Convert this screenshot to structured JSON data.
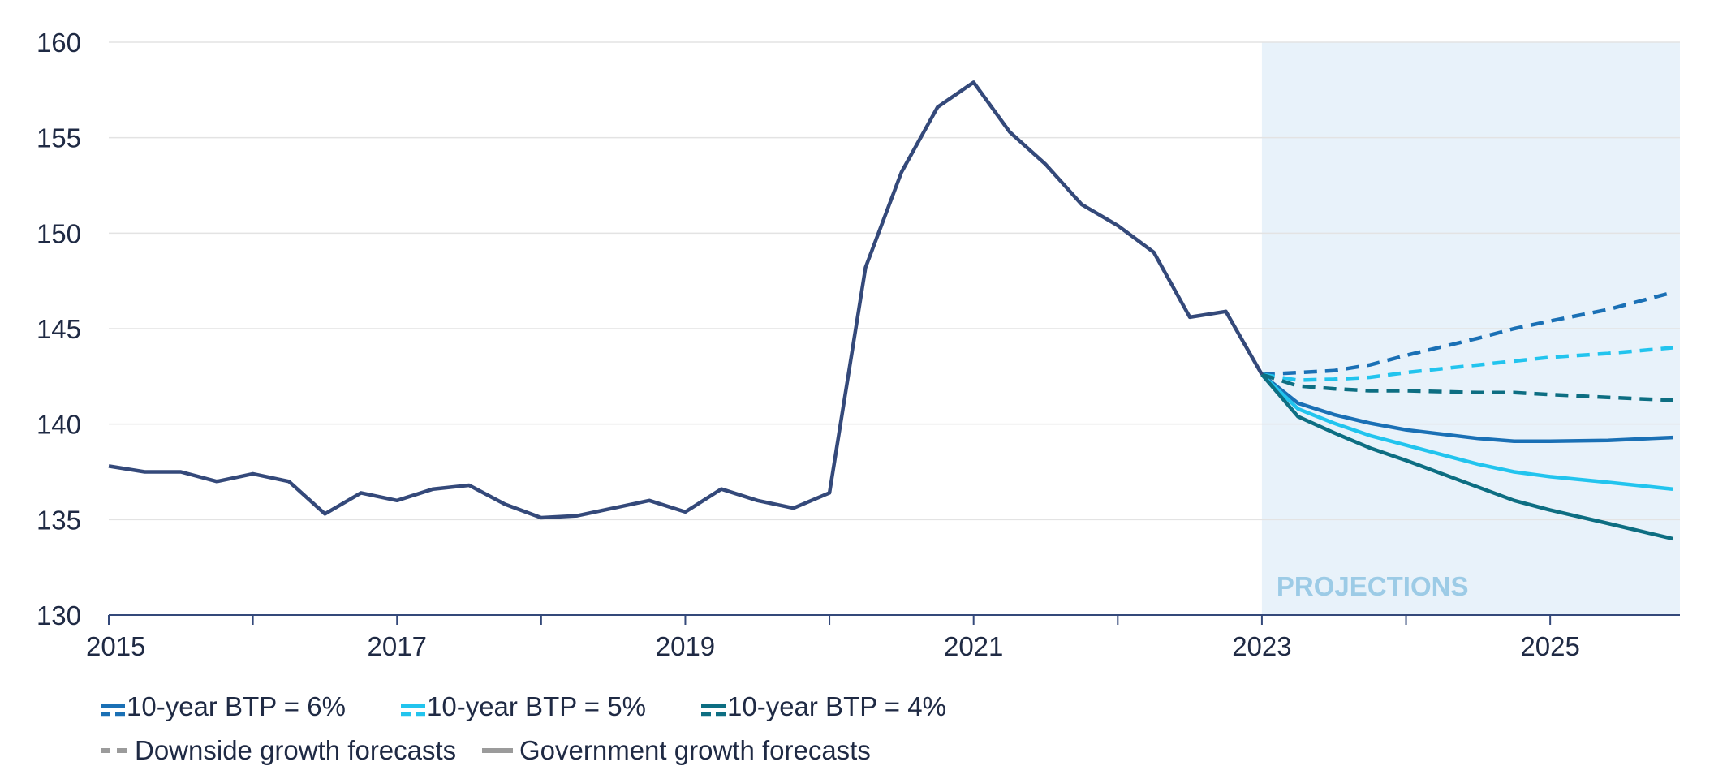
{
  "chart_data": {
    "type": "line",
    "title": "",
    "xlabel": "",
    "ylabel": "",
    "xlim": [
      2015.0,
      2025.9
    ],
    "ylim": [
      130,
      160
    ],
    "y_ticks": [
      130,
      135,
      140,
      145,
      150,
      155,
      160
    ],
    "x_tick_labels": [
      {
        "value": 2015,
        "label": "2015"
      },
      {
        "value": 2017,
        "label": "2017"
      },
      {
        "value": 2019,
        "label": "2019"
      },
      {
        "value": 2021,
        "label": "2021"
      },
      {
        "value": 2023,
        "label": "2023"
      },
      {
        "value": 2025,
        "label": "2025"
      }
    ],
    "x_minor_ticks": [
      2016,
      2018,
      2020,
      2022,
      2024
    ],
    "grid": "horizontal",
    "projection_region": {
      "start": 2023.0,
      "end": 2025.9,
      "label": "PROJECTIONS"
    },
    "historical": {
      "color": "#34497a",
      "x": [
        2015.0,
        2015.25,
        2015.5,
        2015.75,
        2016.0,
        2016.25,
        2016.5,
        2016.75,
        2017.0,
        2017.25,
        2017.5,
        2017.75,
        2018.0,
        2018.25,
        2018.5,
        2018.75,
        2019.0,
        2019.25,
        2019.5,
        2019.75,
        2020.0,
        2020.25,
        2020.5,
        2020.75,
        2021.0,
        2021.25,
        2021.5,
        2021.75,
        2022.0,
        2022.25,
        2022.5,
        2022.75,
        2023.0
      ],
      "y": [
        137.8,
        137.5,
        137.5,
        137.0,
        137.4,
        137.0,
        135.3,
        136.4,
        136.0,
        136.6,
        136.8,
        135.8,
        135.1,
        135.2,
        135.6,
        136.0,
        135.4,
        136.6,
        136.0,
        135.6,
        136.4,
        148.2,
        153.2,
        156.6,
        157.9,
        155.3,
        153.6,
        151.5,
        150.4,
        149.0,
        145.6,
        145.9,
        142.6
      ]
    },
    "series": [
      {
        "btp": 6,
        "color": "#1a70b5",
        "style": "solid",
        "x": [
          2023.0,
          2023.25,
          2023.5,
          2023.75,
          2024.0,
          2024.5,
          2024.75,
          2025.0,
          2025.4,
          2025.85
        ],
        "y": [
          142.6,
          141.1,
          140.5,
          140.05,
          139.7,
          139.25,
          139.1,
          139.1,
          139.15,
          139.3
        ]
      },
      {
        "btp": 6,
        "color": "#1a70b5",
        "style": "dashed",
        "x": [
          2023.0,
          2023.5,
          2023.75,
          2024.0,
          2024.5,
          2024.75,
          2025.0,
          2025.4,
          2025.85
        ],
        "y": [
          142.6,
          142.8,
          143.1,
          143.6,
          144.5,
          145.0,
          145.4,
          146.0,
          146.9
        ]
      },
      {
        "btp": 5,
        "color": "#22c4ee",
        "style": "solid",
        "x": [
          2023.0,
          2023.25,
          2023.5,
          2023.75,
          2024.0,
          2024.5,
          2024.75,
          2025.0,
          2025.4,
          2025.85
        ],
        "y": [
          142.6,
          140.8,
          140.05,
          139.4,
          138.9,
          137.9,
          137.5,
          137.25,
          136.95,
          136.6
        ]
      },
      {
        "btp": 5,
        "color": "#22c4ee",
        "style": "dashed",
        "x": [
          2023.0,
          2023.25,
          2023.5,
          2023.75,
          2024.0,
          2024.5,
          2024.75,
          2025.0,
          2025.4,
          2025.85
        ],
        "y": [
          142.6,
          142.3,
          142.35,
          142.45,
          142.7,
          143.1,
          143.3,
          143.5,
          143.7,
          144.0
        ]
      },
      {
        "btp": 4,
        "color": "#0d6e82",
        "style": "solid",
        "x": [
          2023.0,
          2023.25,
          2023.5,
          2023.75,
          2024.0,
          2024.5,
          2024.75,
          2025.0,
          2025.4,
          2025.85
        ],
        "y": [
          142.6,
          140.4,
          139.55,
          138.75,
          138.1,
          136.7,
          136.0,
          135.5,
          134.8,
          134.0
        ]
      },
      {
        "btp": 4,
        "color": "#0d6e82",
        "style": "dashed",
        "x": [
          2023.0,
          2023.25,
          2023.5,
          2023.75,
          2024.0,
          2024.5,
          2024.75,
          2025.0,
          2025.4,
          2025.85
        ],
        "y": [
          142.6,
          142.0,
          141.85,
          141.75,
          141.75,
          141.65,
          141.65,
          141.55,
          141.4,
          141.25
        ]
      }
    ],
    "legend": {
      "placement": "bottom",
      "row1": [
        {
          "label": "10-year BTP = 6%",
          "color": "#1a70b5"
        },
        {
          "label": "10-year BTP = 5%",
          "color": "#22c4ee"
        },
        {
          "label": "10-year BTP = 4%",
          "color": "#0d6e82"
        }
      ],
      "row2": [
        {
          "label": "Downside growth forecasts",
          "color": "#9b9b9b",
          "style": "dashed"
        },
        {
          "label": "Government growth forecasts",
          "color": "#9b9b9b",
          "style": "solid"
        }
      ]
    }
  }
}
